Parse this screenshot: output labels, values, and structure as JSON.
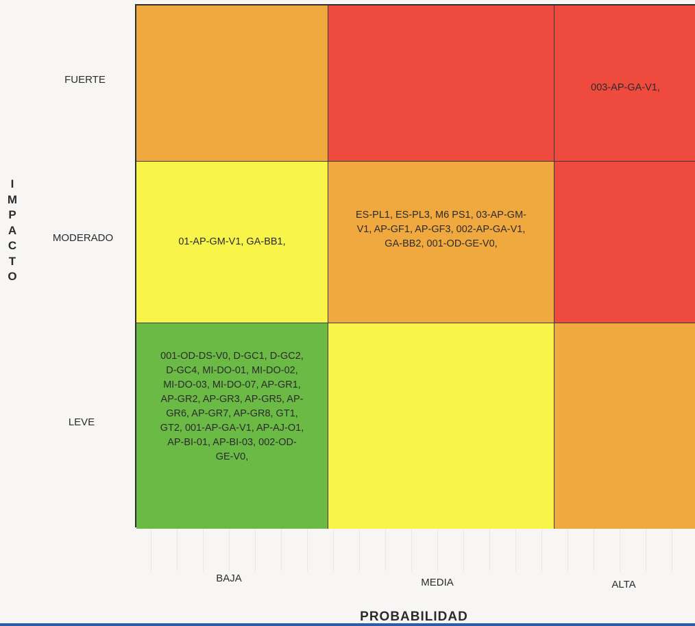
{
  "axis": {
    "y_label": "IMPACTO",
    "x_label": "PROBABILIDAD"
  },
  "rows": [
    "FUERTE",
    "MODERADO",
    "LEVE"
  ],
  "columns": [
    "BAJA",
    "MEDIA",
    "ALTA"
  ],
  "cells": [
    {
      "row": 0,
      "col": 0,
      "color": "#f0a93f",
      "text": ""
    },
    {
      "row": 0,
      "col": 1,
      "color": "#ef4a3e",
      "text": ""
    },
    {
      "row": 0,
      "col": 2,
      "color": "#ef4a3e",
      "text": "003-AP-GA-V1,"
    },
    {
      "row": 1,
      "col": 0,
      "color": "#f9f44a",
      "text": "01-AP-GM-V1, GA-BB1,"
    },
    {
      "row": 1,
      "col": 1,
      "color": "#f0a93f",
      "text": "ES-PL1, ES-PL3, M6 PS1, 03-AP-GM-V1, AP-GF1, AP-GF3, 002-AP-GA-V1, GA-BB2, 001-OD-GE-V0,"
    },
    {
      "row": 1,
      "col": 2,
      "color": "#ef4a3e",
      "text": ""
    },
    {
      "row": 2,
      "col": 0,
      "color": "#6aba45",
      "text": "001-OD-DS-V0, D-GC1, D-GC2, D-GC4, MI-DO-01, MI-DO-02, MI-DO-03, MI-DO-07, AP-GR1, AP-GR2, AP-GR3, AP-GR5, AP-GR6, AP-GR7, AP-GR8, GT1, GT2, 001-AP-GA-V1, AP-AJ-O1, AP-BI-01, AP-BI-03, 002-OD-GE-V0,"
    },
    {
      "row": 2,
      "col": 1,
      "color": "#f9f44a",
      "text": ""
    },
    {
      "row": 2,
      "col": 2,
      "color": "#f0a93f",
      "text": ""
    }
  ]
}
